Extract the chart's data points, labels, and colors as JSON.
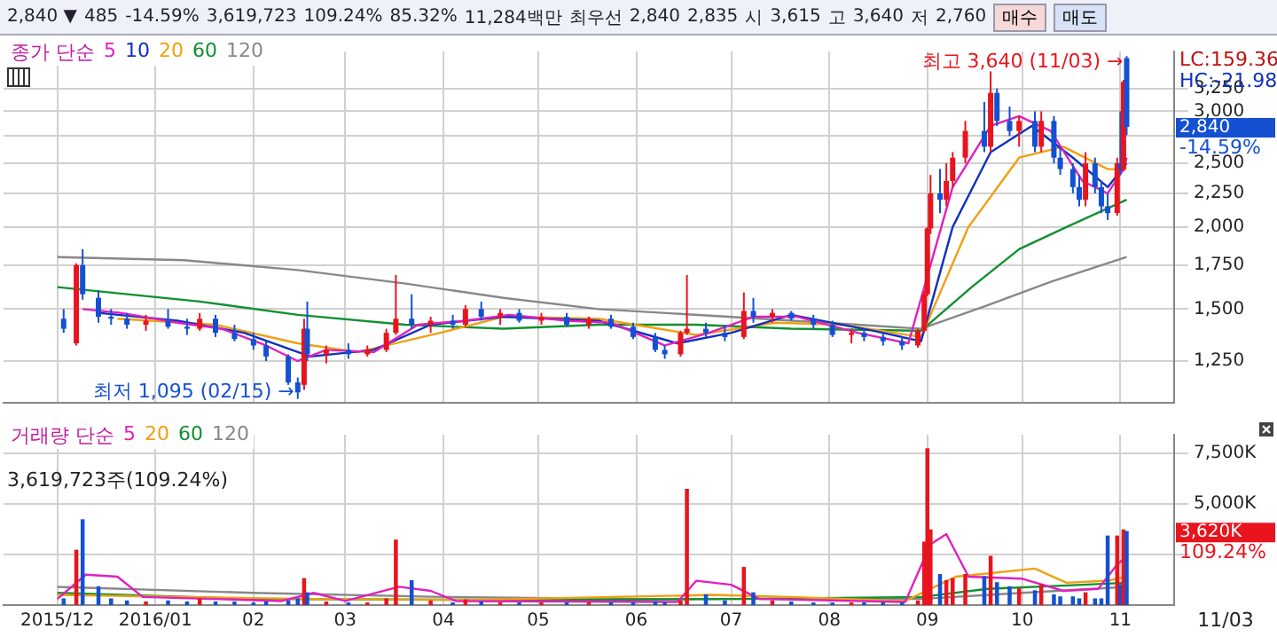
{
  "chart_data": [
    {
      "type": "other",
      "annotations": [
        "2,840 ▼",
        "485",
        "-14.59%",
        "3,619,723",
        "109.24%",
        "85.32%",
        "11,284백만",
        "최우선",
        "2,840",
        "2,835",
        "시",
        "3,615",
        "고",
        "3,640",
        "저",
        "2,760",
        "매수",
        "매도"
      ]
    },
    {
      "type": "candlestick",
      "log": true,
      "grid": true,
      "legend": "top left",
      "legend_title": "종가 단순",
      "tick_labels": "y",
      "xlim": [
        "2015-11-14",
        "2016-11-18"
      ],
      "xticks": [
        {
          "value": "2015-12-01",
          "label": null
        },
        {
          "value": "2016-01-01",
          "label": null
        },
        {
          "value": "2016-02-01",
          "label": null
        },
        {
          "value": "2016-03-01",
          "label": null
        },
        {
          "value": "2016-04-01",
          "label": null
        },
        {
          "value": "2016-05-01",
          "label": null
        },
        {
          "value": "2016-06-01",
          "label": null
        },
        {
          "value": "2016-07-01",
          "label": null
        },
        {
          "value": "2016-08-01",
          "label": null
        },
        {
          "value": "2016-09-01",
          "label": null
        },
        {
          "value": "2016-10-01",
          "label": null
        },
        {
          "value": "2016-11-01",
          "label": null
        }
      ],
      "ylim": [
        1080,
        3700
      ],
      "yticks": [
        {
          "value": 1250,
          "label": "1,250"
        },
        {
          "value": 1500,
          "label": "1,500"
        },
        {
          "value": 1750,
          "label": "1,750"
        },
        {
          "value": 2000,
          "label": "2,000"
        },
        {
          "value": 2250,
          "label": "2,250"
        },
        {
          "value": 2500,
          "label": "2,500"
        },
        {
          "value": 2750,
          "label": null
        },
        {
          "value": 3000,
          "label": "3,000"
        },
        {
          "value": 3250,
          "label": "3,250"
        }
      ],
      "x": [
        "2015-12-03",
        "2015-12-07",
        "2015-12-09",
        "2015-12-14",
        "2015-12-18",
        "2015-12-23",
        "2015-12-29",
        "2016-01-05",
        "2016-01-11",
        "2016-01-15",
        "2016-01-20",
        "2016-01-26",
        "2016-02-01",
        "2016-02-05",
        "2016-02-12",
        "2016-02-15",
        "2016-02-17",
        "2016-02-18",
        "2016-02-24",
        "2016-03-02",
        "2016-03-08",
        "2016-03-14",
        "2016-03-17",
        "2016-03-22",
        "2016-03-28",
        "2016-04-04",
        "2016-04-08",
        "2016-04-13",
        "2016-04-19",
        "2016-04-25",
        "2016-05-02",
        "2016-05-10",
        "2016-05-17",
        "2016-05-24",
        "2016-05-31",
        "2016-06-07",
        "2016-06-10",
        "2016-06-15",
        "2016-06-17",
        "2016-06-23",
        "2016-06-29",
        "2016-07-05",
        "2016-07-08",
        "2016-07-14",
        "2016-07-20",
        "2016-07-27",
        "2016-08-02",
        "2016-08-08",
        "2016-08-12",
        "2016-08-18",
        "2016-08-24",
        "2016-08-29",
        "2016-08-31",
        "2016-09-01",
        "2016-09-02",
        "2016-09-05",
        "2016-09-07",
        "2016-09-09",
        "2016-09-13",
        "2016-09-19",
        "2016-09-21",
        "2016-09-23",
        "2016-09-27",
        "2016-09-30",
        "2016-10-05",
        "2016-10-07",
        "2016-10-11",
        "2016-10-13",
        "2016-10-17",
        "2016-10-19",
        "2016-10-21",
        "2016-10-24",
        "2016-10-26",
        "2016-10-28",
        "2016-10-31",
        "2016-11-01",
        "2016-11-02",
        "2016-11-03"
      ],
      "ohlc": [
        [
          1450,
          1500,
          1380,
          1400
        ],
        [
          1330,
          1760,
          1320,
          1750
        ],
        [
          1750,
          1850,
          1550,
          1580
        ],
        [
          1560,
          1600,
          1430,
          1460
        ],
        [
          1460,
          1500,
          1420,
          1450
        ],
        [
          1450,
          1480,
          1400,
          1420
        ],
        [
          1420,
          1470,
          1390,
          1440
        ],
        [
          1440,
          1500,
          1400,
          1410
        ],
        [
          1410,
          1450,
          1370,
          1400
        ],
        [
          1400,
          1480,
          1390,
          1450
        ],
        [
          1450,
          1470,
          1360,
          1380
        ],
        [
          1380,
          1420,
          1340,
          1350
        ],
        [
          1350,
          1380,
          1300,
          1320
        ],
        [
          1320,
          1340,
          1250,
          1270
        ],
        [
          1270,
          1280,
          1150,
          1160
        ],
        [
          1160,
          1180,
          1095,
          1120
        ],
        [
          1150,
          1450,
          1130,
          1400
        ],
        [
          1400,
          1540,
          1250,
          1280
        ],
        [
          1280,
          1320,
          1240,
          1300
        ],
        [
          1300,
          1330,
          1260,
          1280
        ],
        [
          1280,
          1320,
          1270,
          1300
        ],
        [
          1300,
          1400,
          1290,
          1380
        ],
        [
          1380,
          1690,
          1370,
          1450
        ],
        [
          1450,
          1580,
          1400,
          1420
        ],
        [
          1420,
          1460,
          1380,
          1440
        ],
        [
          1440,
          1470,
          1400,
          1420
        ],
        [
          1420,
          1520,
          1410,
          1500
        ],
        [
          1500,
          1540,
          1440,
          1460
        ],
        [
          1460,
          1500,
          1420,
          1480
        ],
        [
          1480,
          1500,
          1430,
          1440
        ],
        [
          1440,
          1480,
          1420,
          1460
        ],
        [
          1460,
          1480,
          1410,
          1420
        ],
        [
          1420,
          1460,
          1400,
          1450
        ],
        [
          1450,
          1470,
          1400,
          1410
        ],
        [
          1410,
          1430,
          1350,
          1360
        ],
        [
          1360,
          1380,
          1290,
          1300
        ],
        [
          1300,
          1320,
          1260,
          1280
        ],
        [
          1280,
          1390,
          1270,
          1380
        ],
        [
          1380,
          1690,
          1370,
          1400
        ],
        [
          1400,
          1430,
          1360,
          1380
        ],
        [
          1380,
          1420,
          1340,
          1360
        ],
        [
          1360,
          1590,
          1350,
          1490
        ],
        [
          1490,
          1560,
          1430,
          1460
        ],
        [
          1460,
          1500,
          1430,
          1480
        ],
        [
          1480,
          1490,
          1440,
          1450
        ],
        [
          1450,
          1470,
          1400,
          1420
        ],
        [
          1420,
          1440,
          1360,
          1370
        ],
        [
          1370,
          1400,
          1330,
          1380
        ],
        [
          1380,
          1400,
          1340,
          1360
        ],
        [
          1360,
          1380,
          1320,
          1340
        ],
        [
          1340,
          1360,
          1300,
          1320
        ],
        [
          1320,
          1400,
          1310,
          1390
        ],
        [
          1390,
          1600,
          1380,
          1580
        ],
        [
          1580,
          2000,
          1570,
          1990
        ],
        [
          1990,
          2400,
          1950,
          2250
        ],
        [
          2250,
          2450,
          2100,
          2200
        ],
        [
          2200,
          2500,
          2150,
          2350
        ],
        [
          2350,
          2600,
          2300,
          2550
        ],
        [
          2550,
          2900,
          2500,
          2800
        ],
        [
          2800,
          3100,
          2600,
          2650
        ],
        [
          2650,
          3450,
          2600,
          3200
        ],
        [
          3200,
          3250,
          2850,
          2900
        ],
        [
          2900,
          3050,
          2750,
          2800
        ],
        [
          2800,
          2950,
          2650,
          2900
        ],
        [
          2900,
          3000,
          2600,
          2650
        ],
        [
          2650,
          3000,
          2600,
          2900
        ],
        [
          2900,
          2950,
          2500,
          2550
        ],
        [
          2550,
          2650,
          2400,
          2450
        ],
        [
          2450,
          2500,
          2250,
          2300
        ],
        [
          2300,
          2400,
          2150,
          2200
        ],
        [
          2200,
          2600,
          2150,
          2500
        ],
        [
          2500,
          2550,
          2250,
          2300
        ],
        [
          2300,
          2350,
          2100,
          2150
        ],
        [
          2150,
          2250,
          2050,
          2100
        ],
        [
          2100,
          2550,
          2080,
          2500
        ],
        [
          2500,
          3000,
          2400,
          2450
        ],
        [
          2450,
          3350,
          2430,
          3325
        ],
        [
          3615,
          3640,
          2760,
          2840
        ]
      ],
      "series": [
        {
          "name": "5",
          "type": "line",
          "color": "#e020c0",
          "x": [
            "2015-12-09",
            "2015-12-21",
            "2016-01-08",
            "2016-01-22",
            "2016-02-05",
            "2016-02-15",
            "2016-02-24",
            "2016-03-10",
            "2016-03-24",
            "2016-04-08",
            "2016-04-22",
            "2016-05-10",
            "2016-05-24",
            "2016-06-10",
            "2016-06-24",
            "2016-07-08",
            "2016-07-22",
            "2016-08-10",
            "2016-08-26",
            "2016-09-02",
            "2016-09-09",
            "2016-09-21",
            "2016-09-30",
            "2016-10-10",
            "2016-10-20",
            "2016-10-28",
            "2016-11-02",
            "2016-11-03"
          ],
          "values": [
            1500,
            1480,
            1430,
            1400,
            1320,
            1250,
            1300,
            1290,
            1420,
            1440,
            1470,
            1440,
            1430,
            1320,
            1380,
            1460,
            1460,
            1380,
            1330,
            1750,
            2300,
            2850,
            2950,
            2800,
            2350,
            2250,
            2450,
            2550
          ]
        },
        {
          "name": "10",
          "type": "line",
          "color": "#1030c0",
          "x": [
            "2015-12-14",
            "2016-01-08",
            "2016-01-29",
            "2016-02-19",
            "2016-03-10",
            "2016-03-28",
            "2016-04-20",
            "2016-05-20",
            "2016-06-14",
            "2016-07-01",
            "2016-07-20",
            "2016-08-15",
            "2016-08-30",
            "2016-09-09",
            "2016-09-21",
            "2016-10-04",
            "2016-10-17",
            "2016-10-28",
            "2016-11-03"
          ],
          "values": [
            1480,
            1440,
            1380,
            1270,
            1300,
            1420,
            1460,
            1440,
            1330,
            1380,
            1470,
            1390,
            1340,
            2000,
            2600,
            2850,
            2550,
            2300,
            2500
          ]
        },
        {
          "name": "20",
          "type": "line",
          "color": "#f0a010",
          "x": [
            "2015-12-20",
            "2016-01-20",
            "2016-02-15",
            "2016-03-05",
            "2016-03-31",
            "2016-04-20",
            "2016-05-20",
            "2016-06-20",
            "2016-07-15",
            "2016-08-05",
            "2016-08-30",
            "2016-09-14",
            "2016-09-30",
            "2016-10-14",
            "2016-10-28",
            "2016-11-03"
          ],
          "values": [
            1450,
            1420,
            1330,
            1290,
            1380,
            1460,
            1450,
            1370,
            1430,
            1420,
            1360,
            2000,
            2550,
            2650,
            2450,
            2450
          ]
        },
        {
          "name": "60",
          "type": "line",
          "color": "#109030",
          "x": [
            "2015-12-01",
            "2016-01-15",
            "2016-02-15",
            "2016-03-20",
            "2016-04-20",
            "2016-05-20",
            "2016-06-20",
            "2016-07-20",
            "2016-08-30",
            "2016-09-15",
            "2016-09-30",
            "2016-10-15",
            "2016-11-03"
          ],
          "values": [
            1620,
            1540,
            1470,
            1420,
            1400,
            1420,
            1420,
            1400,
            1390,
            1620,
            1850,
            2000,
            2200
          ]
        },
        {
          "name": "120",
          "type": "line",
          "color": "#888888",
          "x": [
            "2015-12-01",
            "2016-01-10",
            "2016-02-15",
            "2016-03-20",
            "2016-04-20",
            "2016-05-20",
            "2016-06-30",
            "2016-08-10",
            "2016-08-30",
            "2016-09-20",
            "2016-10-10",
            "2016-11-03"
          ],
          "values": [
            1800,
            1780,
            1720,
            1640,
            1560,
            1500,
            1460,
            1420,
            1400,
            1520,
            1650,
            1800
          ]
        }
      ],
      "annotations": [
        "LC:159.36",
        "HC:-21.98",
        {
          "text": "최고 3,640 (11/03) →",
          "x": "2016-11-03",
          "y": 3640
        },
        {
          "text": "최저 1,095 (02/15) →",
          "x": "2016-02-15",
          "y": 1095
        },
        "2,840",
        "-14.59%"
      ]
    },
    {
      "type": "bar",
      "grid": true,
      "legend": "top left",
      "legend_title": "거래량 단순",
      "xlim": [
        "2015-11-14",
        "2016-11-18"
      ],
      "xticks": [
        {
          "value": "2015-12-01",
          "label": "2015/12"
        },
        {
          "value": "2016-01-01",
          "label": "2016/01"
        },
        {
          "value": "2016-02-01",
          "label": "02"
        },
        {
          "value": "2016-03-01",
          "label": "03"
        },
        {
          "value": "2016-04-01",
          "label": "04"
        },
        {
          "value": "2016-05-01",
          "label": "05"
        },
        {
          "value": "2016-06-01",
          "label": "06"
        },
        {
          "value": "2016-07-01",
          "label": "07"
        },
        {
          "value": "2016-08-01",
          "label": "08"
        },
        {
          "value": "2016-09-01",
          "label": "09"
        },
        {
          "value": "2016-10-01",
          "label": "10"
        },
        {
          "value": "2016-11-01",
          "label": "11"
        }
      ],
      "ylim": [
        0,
        8400
      ],
      "yticks": [
        {
          "value": 2500,
          "label": null
        },
        {
          "value": 5000,
          "label": "5,000K"
        },
        {
          "value": 7500,
          "label": "7,500K"
        }
      ],
      "x": [
        "2015-12-03",
        "2015-12-07",
        "2015-12-09",
        "2015-12-14",
        "2015-12-18",
        "2015-12-23",
        "2015-12-29",
        "2016-01-05",
        "2016-01-11",
        "2016-01-15",
        "2016-01-20",
        "2016-01-26",
        "2016-02-01",
        "2016-02-05",
        "2016-02-12",
        "2016-02-15",
        "2016-02-17",
        "2016-02-18",
        "2016-02-24",
        "2016-03-02",
        "2016-03-08",
        "2016-03-14",
        "2016-03-17",
        "2016-03-22",
        "2016-03-28",
        "2016-04-04",
        "2016-04-08",
        "2016-04-13",
        "2016-04-19",
        "2016-04-25",
        "2016-05-02",
        "2016-05-10",
        "2016-05-17",
        "2016-05-24",
        "2016-05-31",
        "2016-06-07",
        "2016-06-10",
        "2016-06-15",
        "2016-06-17",
        "2016-06-23",
        "2016-06-29",
        "2016-07-05",
        "2016-07-08",
        "2016-07-14",
        "2016-07-20",
        "2016-07-27",
        "2016-08-02",
        "2016-08-08",
        "2016-08-12",
        "2016-08-18",
        "2016-08-24",
        "2016-08-29",
        "2016-08-31",
        "2016-09-01",
        "2016-09-02",
        "2016-09-05",
        "2016-09-07",
        "2016-09-09",
        "2016-09-13",
        "2016-09-19",
        "2016-09-21",
        "2016-09-23",
        "2016-09-27",
        "2016-09-30",
        "2016-10-05",
        "2016-10-07",
        "2016-10-11",
        "2016-10-13",
        "2016-10-17",
        "2016-10-19",
        "2016-10-21",
        "2016-10-24",
        "2016-10-26",
        "2016-10-28",
        "2016-10-31",
        "2016-11-01",
        "2016-11-02",
        "2016-11-03"
      ],
      "values": [
        300,
        2700,
        4200,
        900,
        300,
        200,
        150,
        200,
        150,
        300,
        150,
        150,
        100,
        150,
        200,
        300,
        1300,
        600,
        150,
        100,
        100,
        300,
        3200,
        1200,
        200,
        100,
        250,
        150,
        100,
        100,
        100,
        100,
        100,
        100,
        100,
        150,
        100,
        200,
        5700,
        500,
        200,
        1850,
        600,
        200,
        150,
        100,
        100,
        100,
        100,
        100,
        100,
        200,
        3100,
        7700,
        3700,
        1500,
        1200,
        1300,
        1500,
        1400,
        2400,
        1100,
        900,
        800,
        700,
        1000,
        500,
        400,
        400,
        300,
        600,
        300,
        300,
        3400,
        3400,
        1000,
        3700,
        3620
      ],
      "colors": [
        "#1450d2",
        "#e8141e",
        "#1450d2",
        "#1450d2",
        "#1450d2",
        "#1450d2",
        "#e8141e",
        "#1450d2",
        "#1450d2",
        "#e8141e",
        "#1450d2",
        "#1450d2",
        "#1450d2",
        "#1450d2",
        "#1450d2",
        "#1450d2",
        "#e8141e",
        "#1450d2",
        "#e8141e",
        "#1450d2",
        "#e8141e",
        "#e8141e",
        "#e8141e",
        "#1450d2",
        "#e8141e",
        "#1450d2",
        "#e8141e",
        "#1450d2",
        "#e8141e",
        "#1450d2",
        "#e8141e",
        "#1450d2",
        "#e8141e",
        "#1450d2",
        "#1450d2",
        "#1450d2",
        "#1450d2",
        "#e8141e",
        "#e8141e",
        "#1450d2",
        "#1450d2",
        "#e8141e",
        "#1450d2",
        "#e8141e",
        "#1450d2",
        "#1450d2",
        "#1450d2",
        "#e8141e",
        "#1450d2",
        "#1450d2",
        "#1450d2",
        "#e8141e",
        "#e8141e",
        "#e8141e",
        "#e8141e",
        "#1450d2",
        "#e8141e",
        "#e8141e",
        "#e8141e",
        "#1450d2",
        "#e8141e",
        "#1450d2",
        "#1450d2",
        "#e8141e",
        "#1450d2",
        "#e8141e",
        "#1450d2",
        "#1450d2",
        "#1450d2",
        "#1450d2",
        "#e8141e",
        "#1450d2",
        "#1450d2",
        "#1450d2",
        "#e8141e",
        "#1450d2",
        "#e8141e",
        "#1450d2"
      ],
      "series": [
        {
          "name": "5",
          "type": "line",
          "color": "#e020c0",
          "x": [
            "2015-12-01",
            "2015-12-10",
            "2015-12-20",
            "2015-12-28",
            "2016-02-10",
            "2016-02-20",
            "2016-03-01",
            "2016-03-18",
            "2016-03-28",
            "2016-04-05",
            "2016-06-14",
            "2016-06-20",
            "2016-07-01",
            "2016-07-10",
            "2016-08-25",
            "2016-09-02",
            "2016-09-07",
            "2016-09-14",
            "2016-10-01",
            "2016-10-14",
            "2016-10-25",
            "2016-10-31",
            "2016-11-03"
          ],
          "values": [
            300,
            1500,
            1400,
            400,
            200,
            600,
            200,
            900,
            700,
            200,
            150,
            1200,
            1000,
            300,
            150,
            3000,
            3500,
            1400,
            1300,
            700,
            800,
            2000,
            2400
          ]
        },
        {
          "name": "20",
          "type": "line",
          "color": "#f0a010",
          "x": [
            "2015-12-01",
            "2016-01-10",
            "2016-02-20",
            "2016-04-10",
            "2016-06-25",
            "2016-07-20",
            "2016-08-25",
            "2016-09-10",
            "2016-10-05",
            "2016-10-15",
            "2016-10-28",
            "2016-11-03"
          ],
          "values": [
            500,
            400,
            300,
            250,
            500,
            400,
            200,
            1400,
            1800,
            1100,
            1200,
            1400
          ]
        },
        {
          "name": "60",
          "type": "line",
          "color": "#109030",
          "x": [
            "2015-12-01",
            "2016-02-01",
            "2016-05-01",
            "2016-07-01",
            "2016-08-30",
            "2016-09-20",
            "2016-10-20",
            "2016-11-03"
          ],
          "values": [
            600,
            300,
            250,
            300,
            400,
            800,
            1000,
            1100
          ]
        },
        {
          "name": "120",
          "type": "line",
          "color": "#888888",
          "x": [
            "2015-12-01",
            "2016-02-01",
            "2016-04-01",
            "2016-06-01",
            "2016-08-30",
            "2016-10-01",
            "2016-11-03"
          ],
          "values": [
            900,
            600,
            400,
            300,
            300,
            600,
            900
          ]
        }
      ],
      "annotations": [
        "3,619,723주(109.24%)",
        "3,620K",
        "109.24%",
        "11/03"
      ]
    }
  ]
}
